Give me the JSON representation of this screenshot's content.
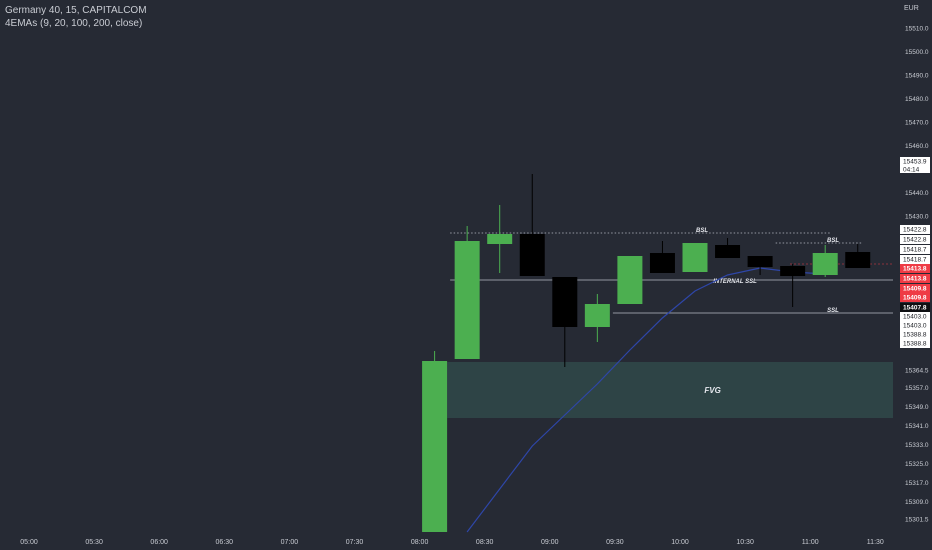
{
  "legend": {
    "title": "Germany 40, 15, CAPITALCOM",
    "indicator": "4EMAs (9, 20, 100, 200, close)"
  },
  "axis": {
    "currency": "EUR"
  },
  "colors": {
    "background": "#262a34",
    "bull": "#4caf50",
    "bear": "#000000",
    "ema": "#2e46a8",
    "fvg": "#2e4446",
    "text": "#c9ccd3",
    "red_tag": "#ef3b45"
  },
  "chart_data": {
    "type": "candlestick",
    "title": "Germany 40, 15, CAPITALCOM",
    "symbol": "Germany 40",
    "interval": "15",
    "source": "CAPITALCOM",
    "currency": "EUR",
    "price_range": [
      15299,
      15516
    ],
    "price_ticks": [
      15510,
      15500,
      15490,
      15480,
      15470,
      15460,
      15440,
      15430,
      15364.5,
      15357,
      15349,
      15341,
      15333,
      15325,
      15317,
      15309,
      15301.5
    ],
    "time_labels": [
      "05:00",
      "05:30",
      "06:00",
      "06:30",
      "07:00",
      "07:30",
      "08:00",
      "08:30",
      "09:00",
      "09:30",
      "10:00",
      "10:30",
      "11:00",
      "11:30"
    ],
    "candles": [
      {
        "time": "08:00",
        "open": 15299,
        "high": 15370,
        "low": 15299,
        "close": 15365.5
      },
      {
        "time": "08:15",
        "open": 15366.5,
        "high": 15428,
        "low": 15366.5,
        "close": 15422
      },
      {
        "time": "08:30",
        "open": 15419,
        "high": 15436,
        "low": 15409,
        "close": 15423
      },
      {
        "time": "08:45",
        "open": 15423,
        "high": 15448,
        "low": 15411,
        "close": 15411
      },
      {
        "time": "09:00",
        "open": 15411,
        "high": 15411,
        "low": 15362,
        "close": 15376
      },
      {
        "time": "09:15",
        "open": 15377,
        "high": 15404,
        "low": 15372,
        "close": 15386
      },
      {
        "time": "09:30",
        "open": 15388,
        "high": 15419,
        "low": 15388,
        "close": 15416
      },
      {
        "time": "09:45",
        "open": 15416,
        "high": 15420,
        "low": 15407,
        "close": 15408
      },
      {
        "time": "10:00",
        "open": 15409,
        "high": 15422,
        "low": 15409,
        "close": 15420
      },
      {
        "time": "10:15",
        "open": 15420,
        "high": 15422,
        "low": 15410,
        "close": 15415
      },
      {
        "time": "10:30",
        "open": 15415,
        "high": 15415,
        "low": 15405,
        "close": 15411
      },
      {
        "time": "10:45",
        "open": 15411,
        "high": 15412,
        "low": 15396,
        "close": 15407.5
      },
      {
        "time": "11:00",
        "open": 15409.5,
        "high": 15420,
        "low": 15407,
        "close": 15417.5
      },
      {
        "time": "11:15",
        "open": 15416,
        "high": 15420,
        "low": 15409,
        "close": 15409.5
      }
    ],
    "ema": {
      "name": "4EMAs (9, 20, 100, 200, close)",
      "points": [
        {
          "time": "08:15",
          "value": 15300
        },
        {
          "time": "08:45",
          "value": 15332
        },
        {
          "time": "09:15",
          "value": 15356
        },
        {
          "time": "09:30",
          "value": 15370
        },
        {
          "time": "09:45",
          "value": 15386
        },
        {
          "time": "10:00",
          "value": 15402
        },
        {
          "time": "10:15",
          "value": 15412
        },
        {
          "time": "10:30",
          "value": 15413
        },
        {
          "time": "10:45",
          "value": 15409
        },
        {
          "time": "11:00",
          "value": 15409
        }
      ]
    },
    "fvg": {
      "label": "FVG",
      "from": "08:15",
      "price_low": 15342.5,
      "price_high": 15365.5
    },
    "levels": [
      {
        "label": "BSL",
        "price": 15422.8,
        "from": "08:15",
        "to": "11:00",
        "style": "dotted"
      },
      {
        "label": "BSL",
        "price": 15419.5,
        "from": "10:45",
        "to": "11:15",
        "style": "dotted"
      },
      {
        "label": "INTERNAL SSL",
        "price": 15410.5,
        "from": "08:15",
        "to": "11:30",
        "style": "solid"
      },
      {
        "label": "SSL",
        "price": 15398.5,
        "from": "09:30",
        "to": "11:30",
        "style": "solid"
      }
    ],
    "price_tags": [
      {
        "text": "15453.9",
        "sub": "04:14",
        "price": 15453.9,
        "style": "white"
      },
      {
        "text": "15422.8",
        "price": 15422.8,
        "style": "white"
      },
      {
        "text": "15422.8",
        "price": 15419.7,
        "style": "white"
      },
      {
        "text": "15418.7",
        "price": 15416.5,
        "style": "white"
      },
      {
        "text": "15418.7",
        "price": 15413.2,
        "style": "white"
      },
      {
        "text": "15413.8",
        "price": 15410.6,
        "style": "red"
      },
      {
        "text": "15413.8",
        "price": 15406.8,
        "style": "red"
      },
      {
        "text": "15409.8",
        "price": 15403.5,
        "style": "red"
      },
      {
        "text": "15409.8",
        "price": 15400.0,
        "style": "red"
      },
      {
        "text": "15407.8",
        "price": 15395.5,
        "style": "dark"
      },
      {
        "text": "15403.0",
        "price": 15391.5,
        "style": "white"
      },
      {
        "text": "15403.0",
        "price": 15387.8,
        "style": "white"
      },
      {
        "text": "15388.8",
        "price": 15384.2,
        "style": "white"
      },
      {
        "text": "15388.8",
        "price": 15380.3,
        "style": "white"
      }
    ]
  }
}
